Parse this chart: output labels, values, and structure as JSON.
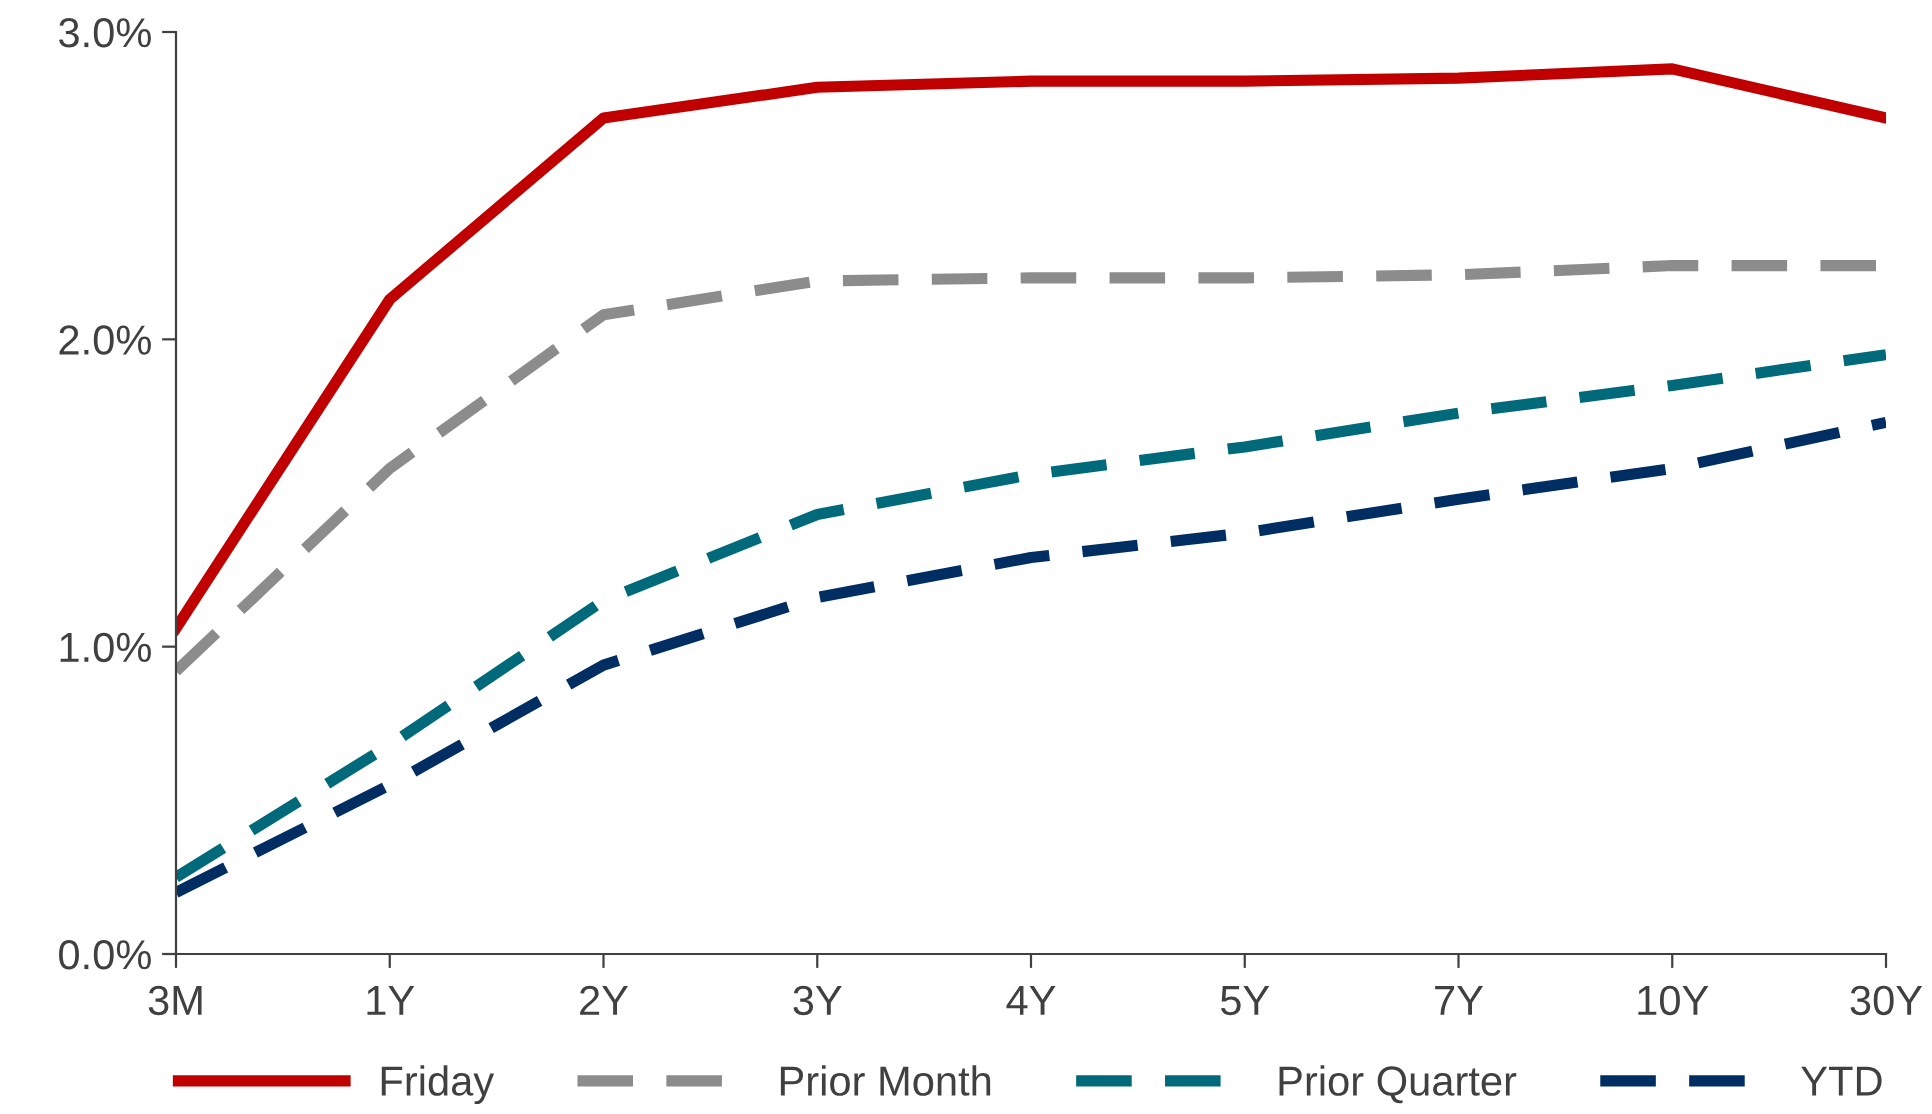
{
  "chart_data": {
    "type": "line",
    "categories": [
      "3M",
      "1Y",
      "2Y",
      "3Y",
      "4Y",
      "5Y",
      "7Y",
      "10Y",
      "30Y"
    ],
    "series": [
      {
        "name": "Friday",
        "color": "#c00000",
        "line_style": "solid",
        "values": [
          1.06,
          2.13,
          2.72,
          2.82,
          2.84,
          2.84,
          2.85,
          2.88,
          2.72
        ]
      },
      {
        "name": "Prior Month",
        "color": "#8c8c8c",
        "line_style": "dashed",
        "values": [
          0.92,
          1.58,
          2.08,
          2.19,
          2.2,
          2.2,
          2.21,
          2.24,
          2.24
        ]
      },
      {
        "name": "Prior Quarter",
        "color": "#006a7a",
        "line_style": "dashed",
        "values": [
          0.25,
          0.68,
          1.15,
          1.43,
          1.56,
          1.65,
          1.76,
          1.85,
          1.95
        ]
      },
      {
        "name": "YTD",
        "color": "#002d62",
        "line_style": "dashed",
        "values": [
          0.2,
          0.55,
          0.94,
          1.16,
          1.29,
          1.37,
          1.48,
          1.58,
          1.73
        ]
      }
    ],
    "ylim": [
      0,
      3
    ],
    "yticks": [
      {
        "value": 0,
        "label": "0.0%"
      },
      {
        "value": 1,
        "label": "1.0%"
      },
      {
        "value": 2,
        "label": "2.0%"
      },
      {
        "value": 3,
        "label": "3.0%"
      }
    ],
    "grid": false,
    "legend": "bottom",
    "marker": "none"
  }
}
